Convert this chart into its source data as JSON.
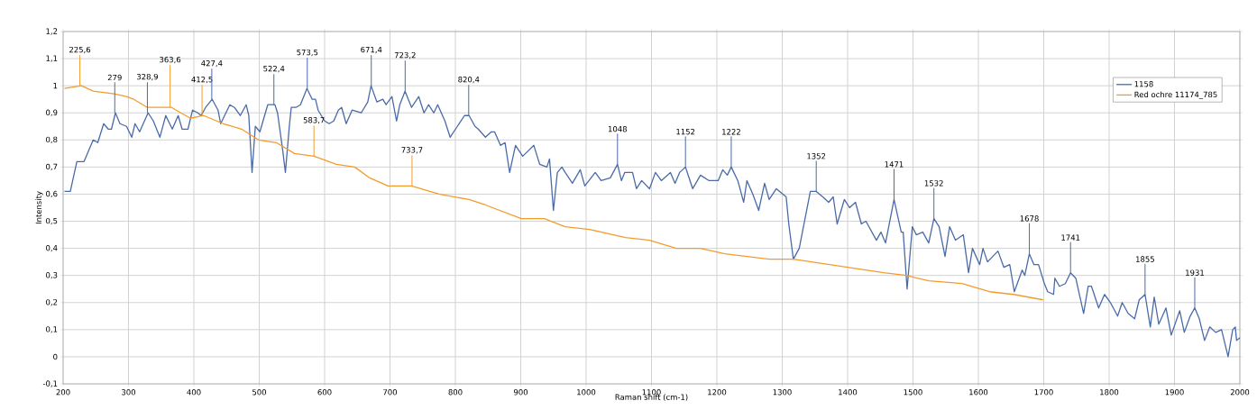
{
  "chart_data": {
    "type": "line",
    "xlabel": "Raman shift (cm-1)",
    "ylabel": "Intensity",
    "xlim": [
      200,
      2000
    ],
    "ylim": [
      -0.1,
      1.2
    ],
    "xticks": [
      200,
      300,
      400,
      500,
      600,
      700,
      800,
      900,
      1000,
      1100,
      1200,
      1300,
      1400,
      1500,
      1600,
      1700,
      1800,
      1900,
      2000
    ],
    "yticks": [
      {
        "value": -0.1,
        "label": "-0,1"
      },
      {
        "value": 0,
        "label": "0"
      },
      {
        "value": 0.1,
        "label": "0,1"
      },
      {
        "value": 0.2,
        "label": "0,2"
      },
      {
        "value": 0.3,
        "label": "0,3"
      },
      {
        "value": 0.4,
        "label": "0,4"
      },
      {
        "value": 0.5,
        "label": "0,5"
      },
      {
        "value": 0.6,
        "label": "0,6"
      },
      {
        "value": 0.7,
        "label": "0,7"
      },
      {
        "value": 0.8,
        "label": "0,8"
      },
      {
        "value": 0.9,
        "label": "0,9"
      },
      {
        "value": 1,
        "label": "1"
      },
      {
        "value": 1.1,
        "label": "1,1"
      },
      {
        "value": 1.2,
        "label": "1,2"
      }
    ],
    "grid": true,
    "legend": "top right",
    "series": [
      {
        "name": "1158",
        "color": "#4a6aa8",
        "x": [
          202,
          211,
          221,
          232,
          246,
          253,
          262,
          269,
          274,
          280,
          287,
          297,
          305,
          310,
          317,
          330,
          338,
          348,
          357,
          367,
          376,
          382,
          391,
          398,
          406,
          411,
          418,
          428,
          437,
          441,
          455,
          462,
          471,
          480,
          484,
          489,
          494,
          501,
          513,
          524,
          528,
          536,
          540,
          546,
          549,
          556,
          563,
          573,
          581,
          586,
          590,
          600,
          607,
          614,
          621,
          626,
          633,
          642,
          656,
          666,
          671,
          680,
          689,
          694,
          703,
          710,
          715,
          723,
          733,
          744,
          752,
          759,
          767,
          773,
          784,
          792,
          803,
          814,
          821,
          830,
          835,
          846,
          855,
          860,
          869,
          876,
          883,
          892,
          903,
          920,
          929,
          940,
          944,
          950,
          956,
          963,
          968,
          979,
          991,
          998,
          1014,
          1023,
          1037,
          1048,
          1054,
          1059,
          1071,
          1077,
          1085,
          1097,
          1106,
          1115,
          1129,
          1136,
          1143,
          1152,
          1163,
          1175,
          1188,
          1202,
          1209,
          1216,
          1222,
          1232,
          1241,
          1246,
          1255,
          1264,
          1273,
          1280,
          1291,
          1301,
          1306,
          1310,
          1317,
          1326,
          1343,
          1352,
          1362,
          1371,
          1378,
          1384,
          1395,
          1403,
          1412,
          1421,
          1428,
          1444,
          1451,
          1458,
          1471,
          1482,
          1485,
          1491,
          1499,
          1505,
          1515,
          1524,
          1532,
          1540,
          1549,
          1556,
          1565,
          1577,
          1585,
          1591,
          1602,
          1607,
          1614,
          1630,
          1639,
          1648,
          1655,
          1667,
          1671,
          1678,
          1685,
          1692,
          1701,
          1706,
          1715,
          1717,
          1724,
          1733,
          1741,
          1749,
          1761,
          1768,
          1773,
          1784,
          1793,
          1802,
          1813,
          1820,
          1829,
          1839,
          1846,
          1855,
          1863,
          1869,
          1876,
          1887,
          1895,
          1908,
          1915,
          1924,
          1931,
          1938,
          1946,
          1954,
          1963,
          1972,
          1982,
          1989,
          1993,
          1995,
          2000
        ],
        "values": [
          0.61,
          0.61,
          0.72,
          0.72,
          0.8,
          0.79,
          0.86,
          0.84,
          0.84,
          0.9,
          0.86,
          0.85,
          0.81,
          0.86,
          0.83,
          0.9,
          0.87,
          0.81,
          0.89,
          0.84,
          0.89,
          0.84,
          0.84,
          0.91,
          0.9,
          0.89,
          0.92,
          0.95,
          0.91,
          0.86,
          0.93,
          0.92,
          0.89,
          0.93,
          0.89,
          0.68,
          0.85,
          0.83,
          0.93,
          0.93,
          0.9,
          0.76,
          0.68,
          0.85,
          0.92,
          0.92,
          0.93,
          0.99,
          0.95,
          0.95,
          0.91,
          0.87,
          0.86,
          0.87,
          0.91,
          0.92,
          0.86,
          0.91,
          0.9,
          0.94,
          1.0,
          0.94,
          0.95,
          0.93,
          0.96,
          0.87,
          0.93,
          0.98,
          0.92,
          0.96,
          0.9,
          0.93,
          0.9,
          0.93,
          0.87,
          0.81,
          0.85,
          0.89,
          0.89,
          0.85,
          0.84,
          0.81,
          0.83,
          0.83,
          0.78,
          0.79,
          0.68,
          0.78,
          0.74,
          0.78,
          0.71,
          0.7,
          0.73,
          0.54,
          0.68,
          0.7,
          0.68,
          0.64,
          0.69,
          0.63,
          0.68,
          0.65,
          0.66,
          0.71,
          0.65,
          0.68,
          0.68,
          0.62,
          0.65,
          0.62,
          0.68,
          0.65,
          0.68,
          0.64,
          0.68,
          0.7,
          0.62,
          0.67,
          0.65,
          0.65,
          0.69,
          0.67,
          0.7,
          0.65,
          0.57,
          0.65,
          0.6,
          0.54,
          0.64,
          0.58,
          0.62,
          0.6,
          0.59,
          0.49,
          0.36,
          0.4,
          0.61,
          0.61,
          0.59,
          0.57,
          0.59,
          0.49,
          0.58,
          0.55,
          0.57,
          0.49,
          0.5,
          0.43,
          0.46,
          0.42,
          0.58,
          0.46,
          0.46,
          0.25,
          0.48,
          0.45,
          0.46,
          0.42,
          0.51,
          0.48,
          0.37,
          0.48,
          0.43,
          0.45,
          0.31,
          0.4,
          0.34,
          0.4,
          0.35,
          0.39,
          0.33,
          0.34,
          0.24,
          0.32,
          0.3,
          0.38,
          0.34,
          0.34,
          0.27,
          0.24,
          0.23,
          0.29,
          0.26,
          0.27,
          0.31,
          0.29,
          0.16,
          0.26,
          0.26,
          0.18,
          0.23,
          0.2,
          0.15,
          0.2,
          0.16,
          0.14,
          0.21,
          0.23,
          0.11,
          0.22,
          0.12,
          0.18,
          0.08,
          0.17,
          0.09,
          0.15,
          0.18,
          0.14,
          0.06,
          0.11,
          0.09,
          0.1,
          0.0,
          0.1,
          0.11,
          0.06,
          0.07
        ]
      },
      {
        "name": "Red ochre 11174_785",
        "color": "#f39c2e",
        "x": [
          202,
          228,
          246,
          278,
          297,
          308,
          329,
          366,
          380,
          395,
          415,
          445,
          473,
          499,
          526,
          554,
          584,
          618,
          646,
          669,
          697,
          733,
          775,
          821,
          846,
          901,
          936,
          968,
          1005,
          1060,
          1097,
          1138,
          1175,
          1212,
          1280,
          1317,
          1400,
          1455,
          1490,
          1524,
          1575,
          1617,
          1654,
          1699
        ],
        "values": [
          0.99,
          1.0,
          0.98,
          0.97,
          0.96,
          0.95,
          0.92,
          0.92,
          0.9,
          0.88,
          0.89,
          0.86,
          0.84,
          0.8,
          0.79,
          0.75,
          0.74,
          0.71,
          0.7,
          0.66,
          0.63,
          0.63,
          0.6,
          0.58,
          0.56,
          0.51,
          0.51,
          0.48,
          0.47,
          0.44,
          0.43,
          0.4,
          0.4,
          0.38,
          0.36,
          0.36,
          0.33,
          0.31,
          0.3,
          0.28,
          0.27,
          0.24,
          0.23,
          0.21
        ]
      }
    ],
    "annotations": [
      {
        "text": "225,6",
        "x": 225.6,
        "y": 1.0
      },
      {
        "text": "279",
        "x": 279,
        "y": 0.9
      },
      {
        "text": "328,9",
        "x": 328.9,
        "y": 0.9
      },
      {
        "text": "363,6",
        "x": 363.6,
        "y": 0.92
      },
      {
        "text": "412,5",
        "x": 412.5,
        "y": 0.89
      },
      {
        "text": "427,4",
        "x": 427.4,
        "y": 0.95
      },
      {
        "text": "522,4",
        "x": 522.4,
        "y": 0.93
      },
      {
        "text": "573,5",
        "x": 573.5,
        "y": 0.99
      },
      {
        "text": "583,7",
        "x": 583.7,
        "y": 0.74
      },
      {
        "text": "671,4",
        "x": 671.4,
        "y": 1.0
      },
      {
        "text": "723,2",
        "x": 723.2,
        "y": 0.98
      },
      {
        "text": "733,7",
        "x": 733.7,
        "y": 0.63
      },
      {
        "text": "820,4",
        "x": 820.4,
        "y": 0.89
      },
      {
        "text": "1048",
        "x": 1048,
        "y": 0.71
      },
      {
        "text": "1152",
        "x": 1152,
        "y": 0.7
      },
      {
        "text": "1222",
        "x": 1222,
        "y": 0.7
      },
      {
        "text": "1352",
        "x": 1352,
        "y": 0.61
      },
      {
        "text": "1471",
        "x": 1471,
        "y": 0.58
      },
      {
        "text": "1532",
        "x": 1532,
        "y": 0.51
      },
      {
        "text": "1678",
        "x": 1678,
        "y": 0.38
      },
      {
        "text": "1741",
        "x": 1741,
        "y": 0.31
      },
      {
        "text": "1855",
        "x": 1855,
        "y": 0.23
      },
      {
        "text": "1931",
        "x": 1931,
        "y": 0.18
      }
    ]
  }
}
